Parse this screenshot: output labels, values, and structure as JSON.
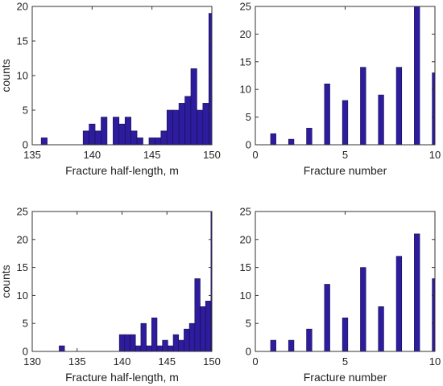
{
  "colors": {
    "bar_fill": "#2E1C9E",
    "bar_edge": "#14104a",
    "axis": "#333333"
  },
  "chart_data": [
    {
      "type": "bar",
      "title": "",
      "xlabel": "Fracture half-length, m",
      "ylabel": "counts",
      "xlim": [
        135,
        150
      ],
      "ylim": [
        0,
        20
      ],
      "xticks": [
        135,
        140,
        145,
        150
      ],
      "yticks": [
        0,
        5,
        10,
        15,
        20
      ],
      "bin_width": 0.5,
      "bins": [
        {
          "x": 136,
          "count": 1
        },
        {
          "x": 139.5,
          "count": 2
        },
        {
          "x": 140,
          "count": 3
        },
        {
          "x": 140.5,
          "count": 2
        },
        {
          "x": 141,
          "count": 4
        },
        {
          "x": 142,
          "count": 4
        },
        {
          "x": 142.5,
          "count": 3
        },
        {
          "x": 143,
          "count": 4
        },
        {
          "x": 143.5,
          "count": 2
        },
        {
          "x": 144,
          "count": 1
        },
        {
          "x": 145,
          "count": 1
        },
        {
          "x": 145.5,
          "count": 1
        },
        {
          "x": 146,
          "count": 2
        },
        {
          "x": 146.5,
          "count": 5
        },
        {
          "x": 147,
          "count": 5
        },
        {
          "x": 147.5,
          "count": 6
        },
        {
          "x": 148,
          "count": 7
        },
        {
          "x": 148.5,
          "count": 11
        },
        {
          "x": 149,
          "count": 5
        },
        {
          "x": 149.5,
          "count": 6
        },
        {
          "x": 150,
          "count": 19
        }
      ]
    },
    {
      "type": "bar",
      "title": "",
      "xlabel": "Fracture number",
      "ylabel": "",
      "xlim": [
        0,
        10
      ],
      "ylim": [
        0,
        25
      ],
      "xticks": [
        0,
        5,
        10
      ],
      "yticks": [
        0,
        5,
        10,
        15,
        20,
        25
      ],
      "bin_width": 0.3,
      "bins": [
        {
          "x": 1,
          "count": 2
        },
        {
          "x": 2,
          "count": 1
        },
        {
          "x": 3,
          "count": 3
        },
        {
          "x": 4,
          "count": 11
        },
        {
          "x": 5,
          "count": 8
        },
        {
          "x": 6,
          "count": 14
        },
        {
          "x": 7,
          "count": 9
        },
        {
          "x": 8,
          "count": 14
        },
        {
          "x": 9,
          "count": 25
        },
        {
          "x": 10,
          "count": 13
        }
      ]
    },
    {
      "type": "bar",
      "title": "",
      "xlabel": "Fracture half-length, m",
      "ylabel": "counts",
      "xlim": [
        130,
        150
      ],
      "ylim": [
        0,
        25
      ],
      "xticks": [
        130,
        135,
        140,
        145,
        150
      ],
      "yticks": [
        0,
        5,
        10,
        15,
        20,
        25
      ],
      "bin_width": 0.6,
      "bins": [
        {
          "x": 133.3,
          "count": 1
        },
        {
          "x": 140,
          "count": 3
        },
        {
          "x": 140.6,
          "count": 3
        },
        {
          "x": 141.2,
          "count": 3
        },
        {
          "x": 141.8,
          "count": 1
        },
        {
          "x": 142.4,
          "count": 5
        },
        {
          "x": 143,
          "count": 1
        },
        {
          "x": 143.6,
          "count": 6
        },
        {
          "x": 144.2,
          "count": 1
        },
        {
          "x": 144.8,
          "count": 2
        },
        {
          "x": 145.4,
          "count": 1
        },
        {
          "x": 146,
          "count": 3
        },
        {
          "x": 146.6,
          "count": 2
        },
        {
          "x": 147.2,
          "count": 4
        },
        {
          "x": 147.8,
          "count": 5
        },
        {
          "x": 148.4,
          "count": 13
        },
        {
          "x": 149,
          "count": 8
        },
        {
          "x": 149.6,
          "count": 9
        },
        {
          "x": 150.2,
          "count": 25
        }
      ]
    },
    {
      "type": "bar",
      "title": "",
      "xlabel": "Fracture number",
      "ylabel": "",
      "xlim": [
        0,
        10
      ],
      "ylim": [
        0,
        25
      ],
      "xticks": [
        0,
        5,
        10
      ],
      "yticks": [
        0,
        5,
        10,
        15,
        20,
        25
      ],
      "bin_width": 0.3,
      "bins": [
        {
          "x": 1,
          "count": 2
        },
        {
          "x": 2,
          "count": 2
        },
        {
          "x": 3,
          "count": 4
        },
        {
          "x": 4,
          "count": 12
        },
        {
          "x": 5,
          "count": 6
        },
        {
          "x": 6,
          "count": 15
        },
        {
          "x": 7,
          "count": 8
        },
        {
          "x": 8,
          "count": 17
        },
        {
          "x": 9,
          "count": 21
        },
        {
          "x": 10,
          "count": 13
        }
      ]
    }
  ]
}
